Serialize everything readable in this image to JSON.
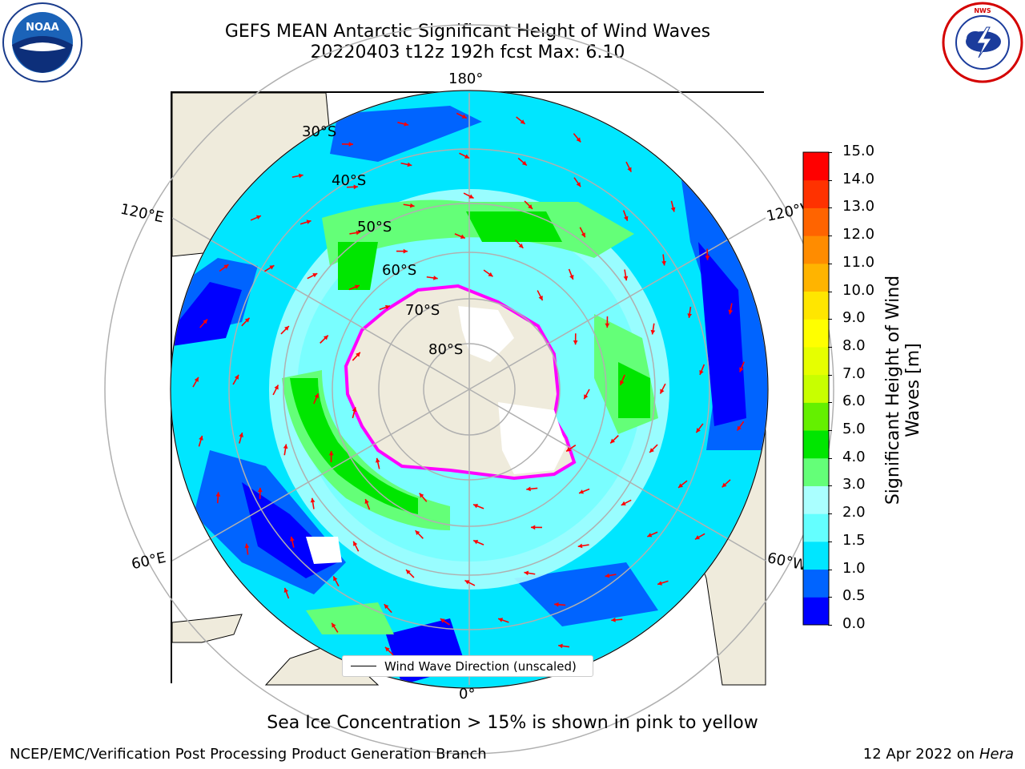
{
  "header": {
    "title_line1": "GEFS MEAN Antarctic Significant Height of Wind Waves",
    "title_line2": "20220403 t12z 192h fcst   Max: 6.10"
  },
  "logos": {
    "left": {
      "name": "noaa-logo",
      "text": "NOAA"
    },
    "right": {
      "name": "nws-logo",
      "text": "NATIONAL WEATHER SERVICE"
    }
  },
  "map": {
    "projection": "south-polar-stereographic",
    "longitude_labels": {
      "top": "180°",
      "bottom": "0°",
      "upper_left": "120°E",
      "upper_right": "120°W",
      "lower_left": "60°E",
      "lower_right": "60°W"
    },
    "latitude_labels": [
      "30°S",
      "40°S",
      "50°S",
      "60°S",
      "70°S",
      "80°S"
    ],
    "legend_label": "Wind Wave Direction (unscaled)",
    "arrow_color": "#ff0000",
    "land_color": "#efebdc"
  },
  "colorbar": {
    "title": "Significant Height of Wind Waves [m]",
    "title_line1": "Significant Height of Wind",
    "title_line2": "Waves [m]",
    "ticks": [
      "0.0",
      "0.5",
      "1.0",
      "1.5",
      "2.0",
      "3.0",
      "4.0",
      "5.0",
      "6.0",
      "7.0",
      "8.0",
      "9.0",
      "10.0",
      "11.0",
      "12.0",
      "13.0",
      "14.0",
      "15.0"
    ],
    "colors": [
      "#0000ff",
      "#0064ff",
      "#00e6ff",
      "#64ffff",
      "#aaffff",
      "#64ff78",
      "#00e600",
      "#64f000",
      "#c8ff00",
      "#e6ff00",
      "#ffff00",
      "#ffe600",
      "#ffb400",
      "#ff8c00",
      "#ff6400",
      "#ff3200",
      "#ff0000"
    ]
  },
  "notes": {
    "sea_ice": "Sea Ice Concentration > 15% is shown in pink to yellow",
    "footer_left": "NCEP/EMC/Verification Post Processing Product Generation Branch",
    "footer_date": "12 Apr 2022 on ",
    "footer_machine": "Hera"
  }
}
